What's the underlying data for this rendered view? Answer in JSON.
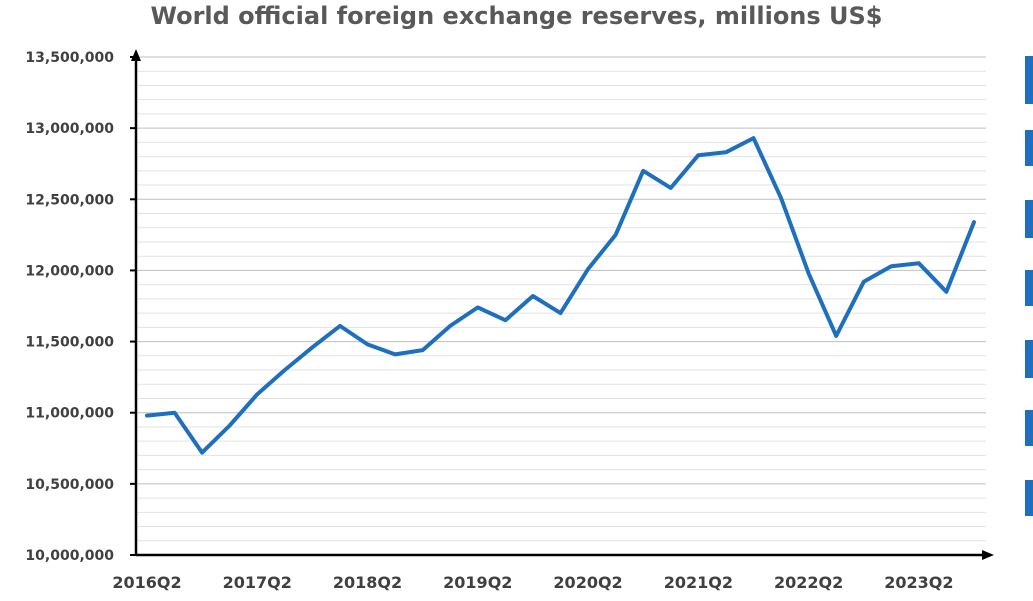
{
  "chart_data": {
    "type": "line",
    "title": "World official foreign exchange reserves, millions US$",
    "xlabel": "",
    "ylabel": "",
    "ylim": [
      10000000,
      13500000
    ],
    "y_ticks": [
      "10,000,000",
      "10,500,000",
      "11,000,000",
      "11,500,000",
      "12,000,000",
      "12,500,000",
      "13,000,000",
      "13,500,000"
    ],
    "x_tick_labels": [
      "2016Q2",
      "2017Q2",
      "2018Q2",
      "2019Q2",
      "2020Q2",
      "2021Q2",
      "2022Q2",
      "2023Q2"
    ],
    "grid": true,
    "line_color": "#1f6fbf",
    "series": [
      {
        "x": [
          "2016Q2",
          "2016Q3",
          "2016Q4",
          "2017Q1",
          "2017Q2",
          "2017Q3",
          "2017Q4",
          "2018Q1",
          "2018Q2",
          "2018Q3",
          "2018Q4",
          "2019Q1",
          "2019Q2",
          "2019Q3",
          "2019Q4",
          "2020Q1",
          "2020Q2",
          "2020Q3",
          "2020Q4",
          "2021Q1",
          "2021Q2",
          "2021Q3",
          "2021Q4",
          "2022Q1",
          "2022Q2",
          "2022Q3",
          "2022Q4",
          "2023Q1",
          "2023Q2",
          "2023Q3",
          "2023Q4"
        ],
        "values": [
          10980000,
          11000000,
          10720000,
          10910000,
          11130000,
          11300000,
          11460000,
          11610000,
          11480000,
          11410000,
          11440000,
          11610000,
          11740000,
          11650000,
          11820000,
          11700000,
          12010000,
          12250000,
          12700000,
          12580000,
          12810000,
          12830000,
          12930000,
          12510000,
          11980000,
          11540000,
          11920000,
          12030000,
          12050000,
          11850000,
          12340000
        ]
      }
    ]
  }
}
